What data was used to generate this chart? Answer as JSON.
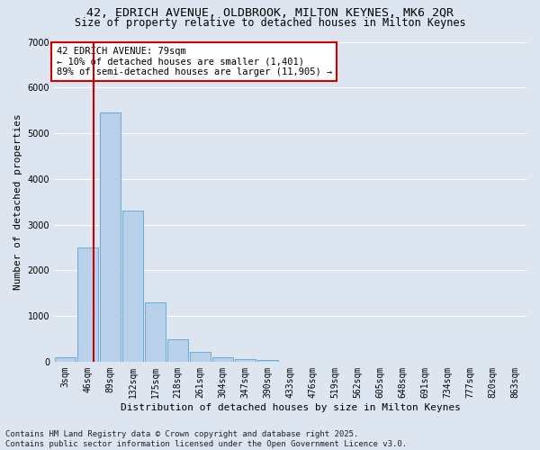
{
  "title_line1": "42, EDRICH AVENUE, OLDBROOK, MILTON KEYNES, MK6 2QR",
  "title_line2": "Size of property relative to detached houses in Milton Keynes",
  "xlabel": "Distribution of detached houses by size in Milton Keynes",
  "ylabel": "Number of detached properties",
  "categories": [
    "3sqm",
    "46sqm",
    "89sqm",
    "132sqm",
    "175sqm",
    "218sqm",
    "261sqm",
    "304sqm",
    "347sqm",
    "390sqm",
    "433sqm",
    "476sqm",
    "519sqm",
    "562sqm",
    "605sqm",
    "648sqm",
    "691sqm",
    "734sqm",
    "777sqm",
    "820sqm",
    "863sqm"
  ],
  "values": [
    100,
    2500,
    5450,
    3300,
    1300,
    490,
    220,
    90,
    50,
    30,
    0,
    0,
    0,
    0,
    0,
    0,
    0,
    0,
    0,
    0,
    0
  ],
  "bar_color": "#b8d0ea",
  "bar_edge_color": "#6aaad4",
  "vline_color": "#cc0000",
  "annotation_text": "42 EDRICH AVENUE: 79sqm\n← 10% of detached houses are smaller (1,401)\n89% of semi-detached houses are larger (11,905) →",
  "annotation_box_color": "#ffffff",
  "annotation_box_edge": "#cc0000",
  "ylim": [
    0,
    7000
  ],
  "yticks": [
    0,
    1000,
    2000,
    3000,
    4000,
    5000,
    6000,
    7000
  ],
  "background_color": "#dde5f0",
  "plot_bg_color": "#dde5f0",
  "grid_color": "#ffffff",
  "footer_line1": "Contains HM Land Registry data © Crown copyright and database right 2025.",
  "footer_line2": "Contains public sector information licensed under the Open Government Licence v3.0.",
  "title_fontsize": 9.5,
  "subtitle_fontsize": 8.5,
  "axis_label_fontsize": 8,
  "tick_fontsize": 7,
  "annotation_fontsize": 7.5,
  "footer_fontsize": 6.5
}
